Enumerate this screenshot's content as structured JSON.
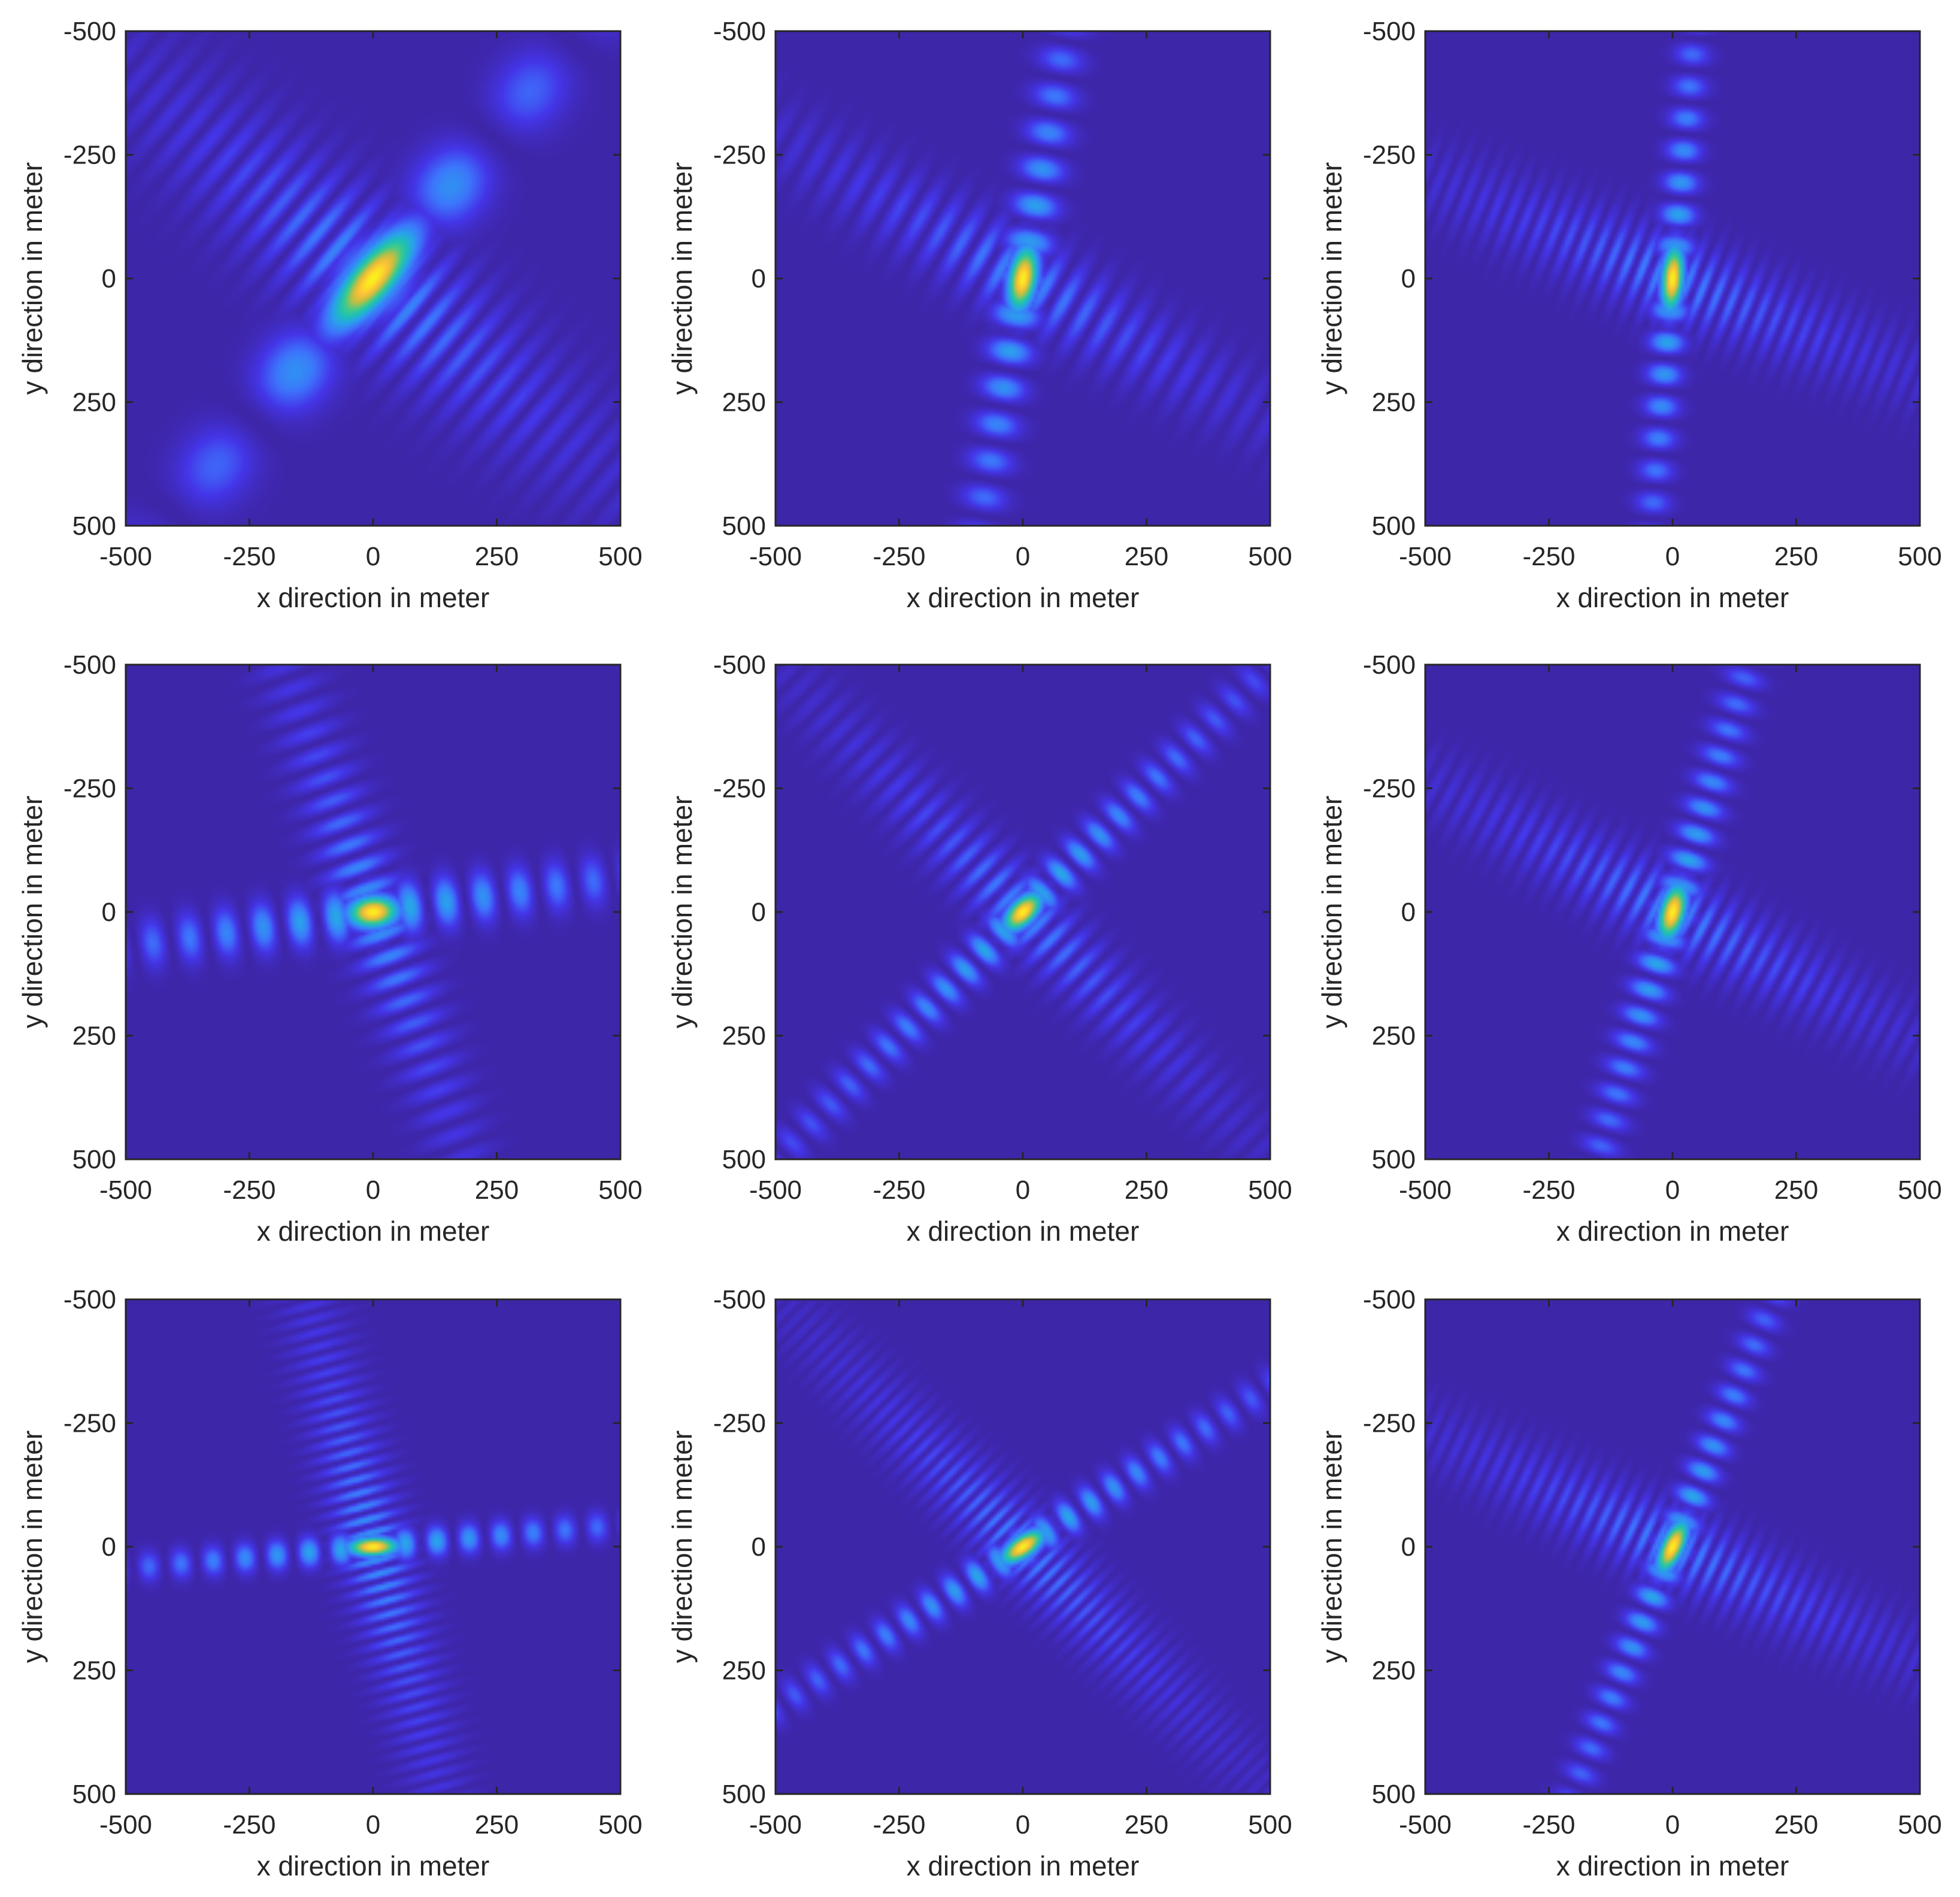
{
  "figure": {
    "grid_rows": 3,
    "grid_cols": 3,
    "colormap": "parula",
    "background_color": "#ffffff",
    "colormap_stops": [
      "#3e26a8",
      "#4435e8",
      "#3d74fc",
      "#2aa2ec",
      "#1cc0b4",
      "#47cb86",
      "#c4bd3f",
      "#fec237",
      "#f9fb15"
    ]
  },
  "chart_data": [
    {
      "type": "heatmap",
      "title": "",
      "xlabel": "x direction in meter",
      "ylabel": "y direction in meter",
      "xlim": [
        -500,
        500
      ],
      "ylim": [
        -500,
        500
      ],
      "y_direction": "reverse",
      "xticks": [
        "-500",
        "-250",
        "0",
        "250",
        "500"
      ],
      "yticks": [
        "-500",
        "-250",
        "0",
        "250",
        "500"
      ],
      "pattern": {
        "main_lobe_orientation_deg": -50,
        "main_lobe_length_m": 190,
        "main_lobe_width_m": 70,
        "arm1_orientation_deg": -50,
        "arm1_strength": 0.4,
        "arm1_lobe_spacing_m": 250,
        "arm2_orientation_deg": 40,
        "arm2_strength": 0.3,
        "arm2_lobe_spacing_m": 48
      }
    },
    {
      "type": "heatmap",
      "title": "",
      "xlabel": "x direction in meter",
      "ylabel": "y direction in meter",
      "xlim": [
        -500,
        500
      ],
      "ylim": [
        -500,
        500
      ],
      "y_direction": "reverse",
      "xticks": [
        "-500",
        "-250",
        "0",
        "250",
        "500"
      ],
      "yticks": [
        "-500",
        "-250",
        "0",
        "250",
        "500"
      ],
      "pattern": {
        "main_lobe_orientation_deg": -80,
        "main_lobe_length_m": 105,
        "main_lobe_width_m": 45,
        "arm1_orientation_deg": -80,
        "arm1_strength": 0.4,
        "arm1_lobe_spacing_m": 75,
        "arm2_orientation_deg": 30,
        "arm2_strength": 0.25,
        "arm2_lobe_spacing_m": 48
      }
    },
    {
      "type": "heatmap",
      "title": "",
      "xlabel": "x direction in meter",
      "ylabel": "y direction in meter",
      "xlim": [
        -500,
        500
      ],
      "ylim": [
        -500,
        500
      ],
      "y_direction": "reverse",
      "xticks": [
        "-500",
        "-250",
        "0",
        "250",
        "500"
      ],
      "yticks": [
        "-500",
        "-250",
        "0",
        "250",
        "500"
      ],
      "pattern": {
        "main_lobe_orientation_deg": -85,
        "main_lobe_length_m": 105,
        "main_lobe_width_m": 35,
        "arm1_orientation_deg": -85,
        "arm1_strength": 0.4,
        "arm1_lobe_spacing_m": 65,
        "arm2_orientation_deg": 22,
        "arm2_strength": 0.25,
        "arm2_lobe_spacing_m": 32
      }
    },
    {
      "type": "heatmap",
      "title": "",
      "xlabel": "x direction in meter",
      "ylabel": "y direction in meter",
      "xlim": [
        -500,
        500
      ],
      "ylim": [
        -500,
        500
      ],
      "y_direction": "reverse",
      "xticks": [
        "-500",
        "-250",
        "0",
        "250",
        "500"
      ],
      "yticks": [
        "-500",
        "-250",
        "0",
        "250",
        "500"
      ],
      "pattern": {
        "main_lobe_orientation_deg": -5,
        "main_lobe_length_m": 80,
        "main_lobe_width_m": 50,
        "arm1_orientation_deg": -8,
        "arm1_strength": 0.4,
        "arm1_lobe_spacing_m": 75,
        "arm2_orientation_deg": 70,
        "arm2_strength": 0.3,
        "arm2_lobe_spacing_m": 48
      }
    },
    {
      "type": "heatmap",
      "title": "",
      "xlabel": "x direction in meter",
      "ylabel": "y direction in meter",
      "xlim": [
        -500,
        500
      ],
      "ylim": [
        -500,
        500
      ],
      "y_direction": "reverse",
      "xticks": [
        "-500",
        "-250",
        "0",
        "250",
        "500"
      ],
      "yticks": [
        "-500",
        "-250",
        "0",
        "250",
        "500"
      ],
      "pattern": {
        "main_lobe_orientation_deg": -45,
        "main_lobe_length_m": 75,
        "main_lobe_width_m": 40,
        "arm1_orientation_deg": -45,
        "arm1_strength": 0.4,
        "arm1_lobe_spacing_m": 55,
        "arm2_orientation_deg": 45,
        "arm2_strength": 0.25,
        "arm2_lobe_spacing_m": 40
      }
    },
    {
      "type": "heatmap",
      "title": "",
      "xlabel": "x direction in meter",
      "ylabel": "y direction in meter",
      "xlim": [
        -500,
        500
      ],
      "ylim": [
        -500,
        500
      ],
      "y_direction": "reverse",
      "xticks": [
        "-500",
        "-250",
        "0",
        "250",
        "500"
      ],
      "yticks": [
        "-500",
        "-250",
        "0",
        "250",
        "500"
      ],
      "pattern": {
        "main_lobe_orientation_deg": -75,
        "main_lobe_length_m": 90,
        "main_lobe_width_m": 40,
        "arm1_orientation_deg": -73,
        "arm1_strength": 0.4,
        "arm1_lobe_spacing_m": 55,
        "arm2_orientation_deg": 28,
        "arm2_strength": 0.25,
        "arm2_lobe_spacing_m": 34
      }
    },
    {
      "type": "heatmap",
      "title": "",
      "xlabel": "x direction in meter",
      "ylabel": "y direction in meter",
      "xlim": [
        -500,
        500
      ],
      "ylim": [
        -500,
        500
      ],
      "y_direction": "reverse",
      "xticks": [
        "-500",
        "-250",
        "0",
        "250",
        "500"
      ],
      "yticks": [
        "-500",
        "-250",
        "0",
        "250",
        "500"
      ],
      "pattern": {
        "main_lobe_orientation_deg": -2,
        "main_lobe_length_m": 80,
        "main_lobe_width_m": 30,
        "arm1_orientation_deg": -5,
        "arm1_strength": 0.4,
        "arm1_lobe_spacing_m": 65,
        "arm2_orientation_deg": 75,
        "arm2_strength": 0.3,
        "arm2_lobe_spacing_m": 28
      }
    },
    {
      "type": "heatmap",
      "title": "",
      "xlabel": "x direction in meter",
      "ylabel": "y direction in meter",
      "xlim": [
        -500,
        500
      ],
      "ylim": [
        -500,
        500
      ],
      "y_direction": "reverse",
      "xticks": [
        "-500",
        "-250",
        "0",
        "250",
        "500"
      ],
      "yticks": [
        "-500",
        "-250",
        "0",
        "250",
        "500"
      ],
      "pattern": {
        "main_lobe_orientation_deg": -35,
        "main_lobe_length_m": 80,
        "main_lobe_width_m": 35,
        "arm1_orientation_deg": -33,
        "arm1_strength": 0.4,
        "arm1_lobe_spacing_m": 55,
        "arm2_orientation_deg": 45,
        "arm2_strength": 0.25,
        "arm2_lobe_spacing_m": 26
      }
    },
    {
      "type": "heatmap",
      "title": "",
      "xlabel": "x direction in meter",
      "ylabel": "y direction in meter",
      "xlim": [
        -500,
        500
      ],
      "ylim": [
        -500,
        500
      ],
      "y_direction": "reverse",
      "xticks": [
        "-500",
        "-250",
        "0",
        "250",
        "500"
      ],
      "yticks": [
        "-500",
        "-250",
        "0",
        "250",
        "500"
      ],
      "pattern": {
        "main_lobe_orientation_deg": -65,
        "main_lobe_length_m": 90,
        "main_lobe_width_m": 35,
        "arm1_orientation_deg": -68,
        "arm1_strength": 0.4,
        "arm1_lobe_spacing_m": 55,
        "arm2_orientation_deg": 25,
        "arm2_strength": 0.25,
        "arm2_lobe_spacing_m": 30
      }
    }
  ]
}
